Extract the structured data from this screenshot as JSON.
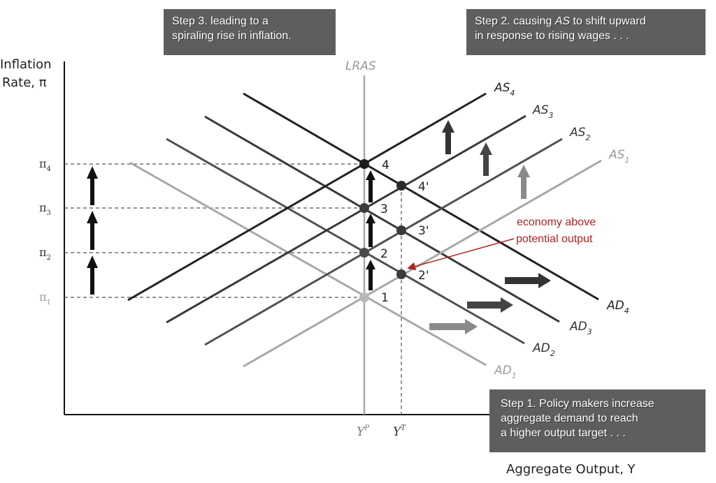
{
  "axes": {
    "y_title_line1": "Inflation",
    "y_title_line2": "Rate, π",
    "x_title": "Aggregate Output, Y",
    "lras_label": "LRAS",
    "x_ticks": {
      "potential": "Y",
      "potential_sup": "P",
      "target": "Y",
      "target_sup": "T"
    },
    "y_ticks": [
      {
        "main": "π",
        "sub": "4"
      },
      {
        "main": "π",
        "sub": "3"
      },
      {
        "main": "π",
        "sub": "2"
      },
      {
        "main": "π",
        "sub": "1"
      }
    ]
  },
  "curves": {
    "as": [
      {
        "main": "AS",
        "sub": "4",
        "color": "#222222"
      },
      {
        "main": "AS",
        "sub": "3",
        "color": "#383838"
      },
      {
        "main": "AS",
        "sub": "2",
        "color": "#505050"
      },
      {
        "main": "AS",
        "sub": "1",
        "color": "#a8a8a8"
      }
    ],
    "ad": [
      {
        "main": "AD",
        "sub": "4",
        "color": "#222222"
      },
      {
        "main": "AD",
        "sub": "3",
        "color": "#383838"
      },
      {
        "main": "AD",
        "sub": "2",
        "color": "#505050"
      },
      {
        "main": "AD",
        "sub": "1",
        "color": "#a8a8a8"
      }
    ]
  },
  "points": {
    "lras": [
      "4",
      "3",
      "2",
      "1"
    ],
    "target": [
      "4'",
      "3'",
      "2'"
    ]
  },
  "annotation": {
    "line1": "economy above",
    "line2": "potential output",
    "color": "#b22222"
  },
  "callouts": {
    "step3": {
      "line1": "Step 3. leading to a",
      "line2": "spiraling rise in inflation."
    },
    "step2": {
      "line1_pre": "Step 2. causing ",
      "line1_em": "AS",
      "line1_post": " to shift upward",
      "line2": "in response to rising wages . . ."
    },
    "step1": {
      "line1": "Step 1. Policy makers increase",
      "line2": "aggregate demand to reach",
      "line3": "a higher output target . . ."
    }
  }
}
